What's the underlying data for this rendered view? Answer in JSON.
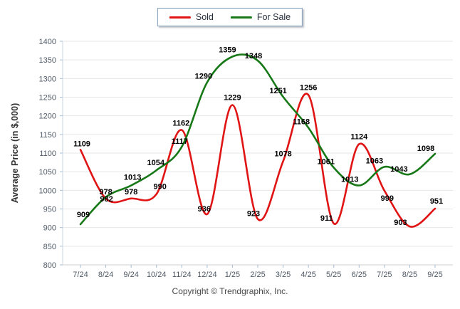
{
  "legend": {
    "items": [
      {
        "label": "Sold",
        "color": "#e01414"
      },
      {
        "label": "For Sale",
        "color": "#177817"
      }
    ]
  },
  "chart_data": {
    "type": "line",
    "title": "",
    "xlabel": "",
    "ylabel": "Average Price (in $,000)",
    "ylim": [
      800,
      1400
    ],
    "ytick_step": 50,
    "grid": "horizontal",
    "legend_position": "top-center",
    "smooth": true,
    "categories": [
      "7/24",
      "8/24",
      "9/24",
      "10/24",
      "11/24",
      "12/24",
      "1/25",
      "2/25",
      "3/25",
      "4/25",
      "5/25",
      "6/25",
      "7/25",
      "8/25",
      "9/25"
    ],
    "series": [
      {
        "name": "Sold",
        "color": "#e01414",
        "values": [
          1109,
          978,
          978,
          990,
          1162,
          936,
          1229,
          923,
          1078,
          1256,
          911,
          1124,
          999,
          903,
          951
        ],
        "label_offsets": [
          [
            2,
            -5
          ],
          [
            0,
            -6
          ],
          [
            0,
            -6
          ],
          [
            5,
            -7
          ],
          [
            -1,
            -6
          ],
          [
            -4,
            -4
          ],
          [
            0,
            -7
          ],
          [
            -6,
            -4
          ],
          [
            0,
            -7
          ],
          [
            0,
            -7
          ],
          [
            -10,
            -4
          ],
          [
            0,
            -7
          ],
          [
            4,
            14
          ],
          [
            -13,
            -2
          ],
          [
            2,
            -7
          ]
        ]
      },
      {
        "name": "For Sale",
        "color": "#177817",
        "values": [
          909,
          982,
          1013,
          1054,
          1117,
          1290,
          1359,
          1348,
          1251,
          1168,
          1061,
          1013,
          1063,
          1043,
          1098
        ],
        "label_offsets": [
          [
            4,
            -10
          ],
          [
            1,
            6
          ],
          [
            2,
            -8
          ],
          [
            -1,
            -7
          ],
          [
            -3,
            -4
          ],
          [
            -5,
            -5
          ],
          [
            -7,
            -6
          ],
          [
            -6,
            -3
          ],
          [
            -7,
            -5
          ],
          [
            -10,
            -5
          ],
          [
            -11,
            -5
          ],
          [
            -13,
            -5
          ],
          [
            -14,
            -5
          ],
          [
            -15,
            -4
          ],
          [
            -13,
            -4
          ]
        ]
      }
    ]
  },
  "footer": {
    "text": "Copyright © Trendgraphix, Inc."
  }
}
